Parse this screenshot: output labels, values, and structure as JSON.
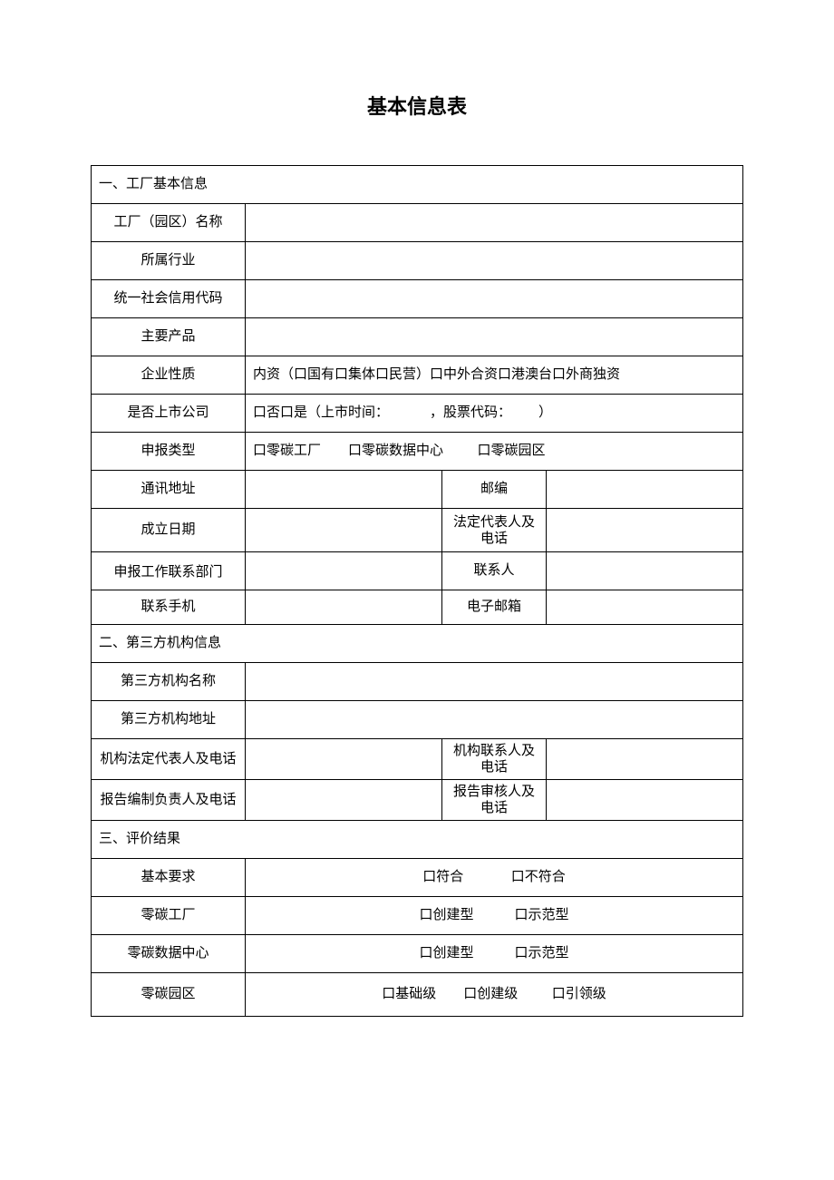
{
  "title": "基本信息表",
  "sections": {
    "s1": {
      "header": "一、工厂基本信息",
      "rows": {
        "factory_name": {
          "label": "工厂（园区）名称",
          "value": ""
        },
        "industry": {
          "label": "所属行业",
          "value": ""
        },
        "credit_code": {
          "label": "统一社会信用代码",
          "value": ""
        },
        "main_products": {
          "label": "主要产品",
          "value": ""
        },
        "enterprise_nature": {
          "label": "企业性质",
          "value": "内资（口国有口集体口民营）口中外合资口港澳台口外商独资"
        },
        "is_listed": {
          "label": "是否上市公司",
          "value": "口否口是（上市时间：            ，股票代码：        ）"
        },
        "application_type": {
          "label": "申报类型",
          "value": "口零碳工厂        口零碳数据中心          口零碳园区"
        },
        "address": {
          "label": "通讯地址",
          "value1": "",
          "label2": "邮编",
          "value2": ""
        },
        "founding_date": {
          "label": "成立日期",
          "value1": "",
          "label2": "法定代表人及电话",
          "value2": ""
        },
        "dept": {
          "label": "申报工作联系部门",
          "value1": "",
          "label2": "联系人",
          "value2": ""
        },
        "mobile": {
          "label": "联系手机",
          "value1": "",
          "label2": "电子邮箱",
          "value2": ""
        }
      }
    },
    "s2": {
      "header": "二、第三方机构信息",
      "rows": {
        "org_name": {
          "label": "第三方机构名称",
          "value": ""
        },
        "org_address": {
          "label": "第三方机构地址",
          "value": ""
        },
        "org_legal": {
          "label": "机构法定代表人及电话",
          "value1": "",
          "label2": "机构联系人及电话",
          "value2": ""
        },
        "report_person": {
          "label": "报告编制负责人及电话",
          "value1": "",
          "label2": "报告审核人及电话",
          "value2": ""
        }
      }
    },
    "s3": {
      "header": "三、评价结果",
      "rows": {
        "basic_req": {
          "label": "基本要求",
          "value": "口符合              口不符合"
        },
        "zero_factory": {
          "label": "零碳工厂",
          "value": "口创建型            口示范型"
        },
        "zero_datacenter": {
          "label": "零碳数据中心",
          "value": "口创建型            口示范型"
        },
        "zero_park": {
          "label": "零碳园区",
          "value": "口基础级        口创建级          口引领级"
        }
      }
    }
  }
}
